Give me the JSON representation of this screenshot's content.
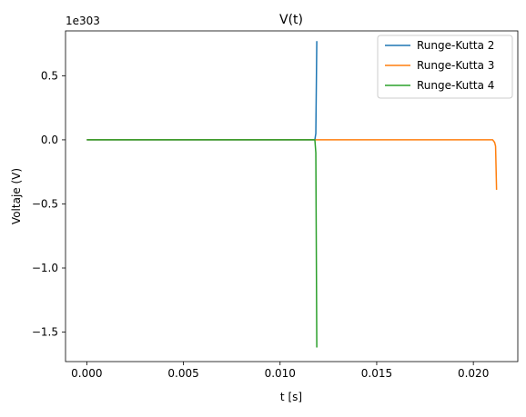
{
  "chart_data": {
    "type": "line",
    "title": "V(t)",
    "xlabel": "t [s]",
    "ylabel": "Voltaje (V)",
    "y_offset_label": "1e303",
    "y_scale": 1e+303,
    "xlim": [
      -0.0011,
      0.0223
    ],
    "ylim": [
      -1.73,
      0.85
    ],
    "x_ticks": [
      0.0,
      0.005,
      0.01,
      0.015,
      0.02
    ],
    "x_tick_labels": [
      "0.000",
      "0.005",
      "0.010",
      "0.015",
      "0.020"
    ],
    "y_ticks": [
      -1.5,
      -1.0,
      -0.5,
      0.0,
      0.5
    ],
    "y_tick_labels": [
      "−1.5",
      "−1.0",
      "−0.5",
      "0.0",
      "0.5"
    ],
    "grid": false,
    "legend_position": "top-right",
    "series": [
      {
        "name": "Runge-Kutta 2",
        "color": "#1f77b4",
        "x": [
          0.0,
          0.0118,
          0.01185,
          0.0119
        ],
        "y": [
          0.0,
          0.0,
          0.05,
          0.77
        ]
      },
      {
        "name": "Runge-Kutta 3",
        "color": "#ff7f0e",
        "x": [
          0.0,
          0.021,
          0.0211,
          0.02115,
          0.0212
        ],
        "y": [
          0.0,
          0.0,
          -0.02,
          -0.05,
          -0.39
        ]
      },
      {
        "name": "Runge-Kutta 4",
        "color": "#2ca02c",
        "x": [
          0.0,
          0.0118,
          0.01185,
          0.0119
        ],
        "y": [
          0.0,
          0.0,
          -0.1,
          -1.62
        ]
      }
    ]
  }
}
